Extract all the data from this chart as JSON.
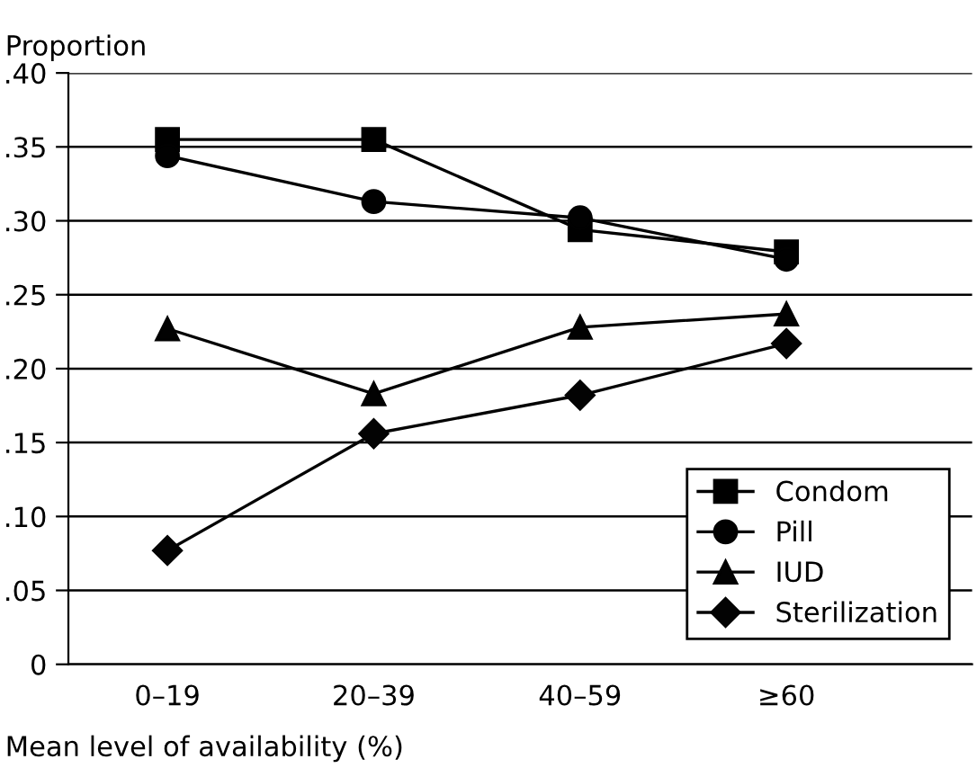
{
  "chart_data": {
    "type": "line",
    "xlabel": "Mean level of availability (%)",
    "ylabel": "Proportion",
    "categories": [
      "0–19",
      "20–39",
      "40–59",
      "≥60"
    ],
    "series": [
      {
        "name": "Condom",
        "color": "#000000",
        "marker": "square",
        "values": [
          0.355,
          0.355,
          0.294,
          0.279
        ]
      },
      {
        "name": "Pill",
        "color": "#010101",
        "marker": "circle",
        "values": [
          0.344,
          0.313,
          0.302,
          0.274
        ]
      },
      {
        "name": "IUD",
        "color": "#020202",
        "marker": "triangle",
        "values": [
          0.227,
          0.183,
          0.228,
          0.237
        ]
      },
      {
        "name": "Sterilization",
        "color": "#030303",
        "marker": "diamond",
        "values": [
          0.077,
          0.156,
          0.182,
          0.217
        ]
      }
    ],
    "ylim": [
      0,
      0.4
    ],
    "yticks": [
      0,
      {
        "value": 0.05,
        "label": ".05"
      },
      {
        "value": 0.1,
        "label": ".10"
      },
      {
        "value": 0.15,
        "label": ".15"
      },
      {
        "value": 0.2,
        "label": ".20"
      },
      {
        "value": 0.25,
        "label": ".25"
      },
      {
        "value": 0.3,
        "label": ".30"
      },
      {
        "value": 0.35,
        "label": ".35"
      },
      {
        "value": 0.4,
        "label": ".40"
      }
    ],
    "grid": "y",
    "legend": "bottom right",
    "line_style": "solid"
  }
}
